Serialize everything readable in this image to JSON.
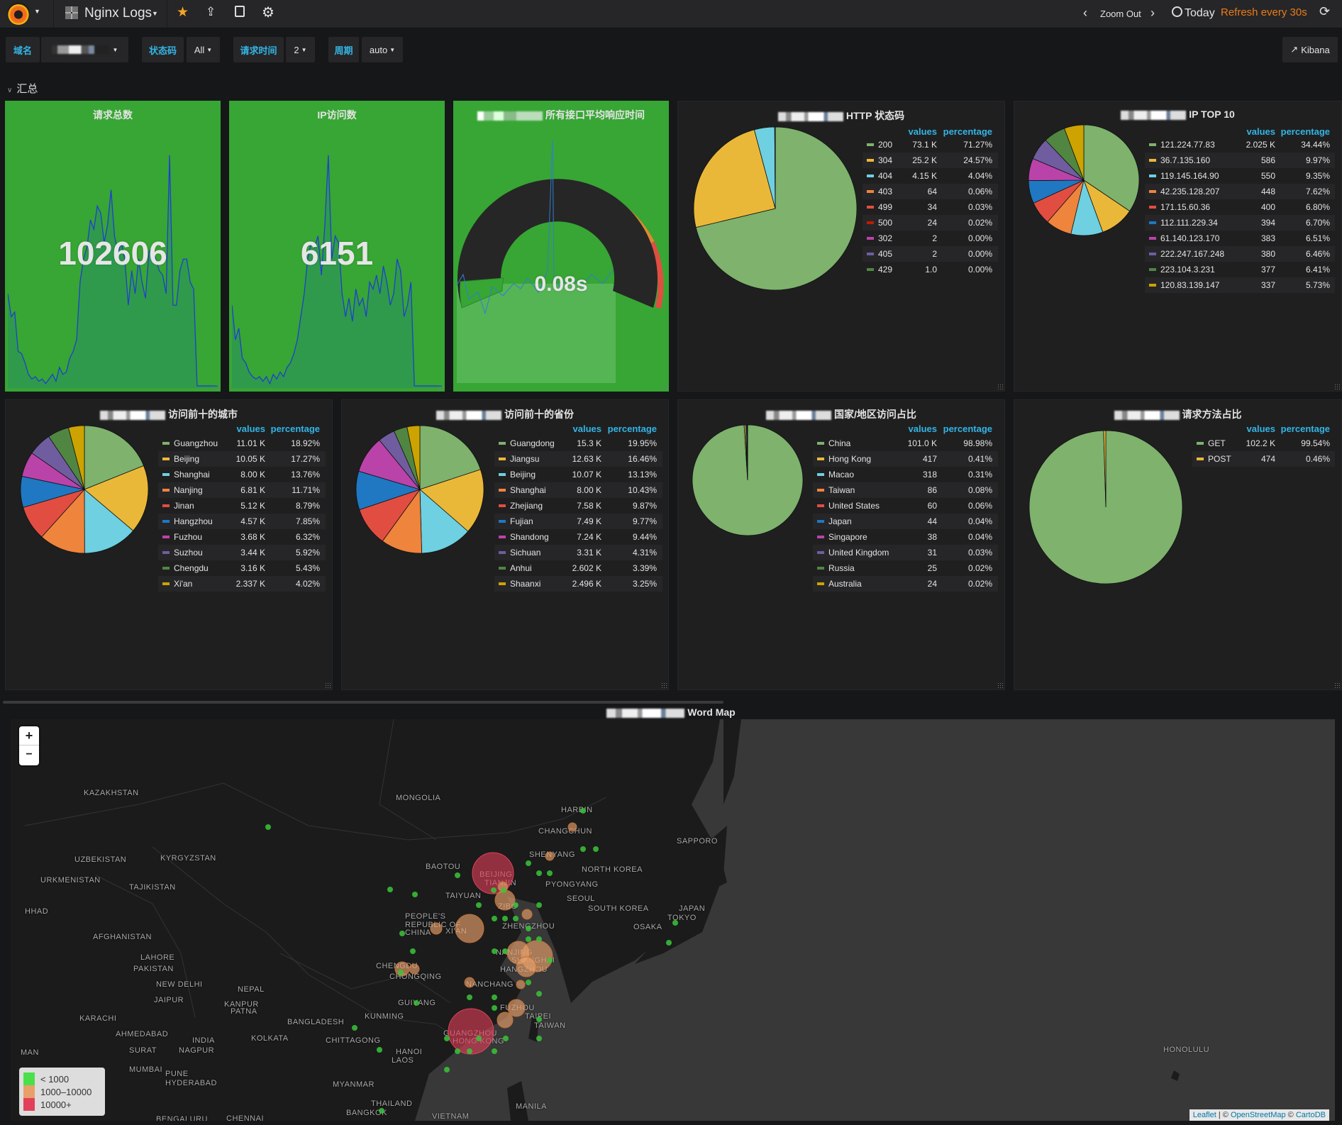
{
  "nav": {
    "dashboard_title": "Nginx Logs",
    "zoom_out": "Zoom Out",
    "time_range": "Today",
    "refresh": "Refresh every 30s"
  },
  "vars": [
    {
      "label": "域名",
      "value": ""
    },
    {
      "label": "状态码",
      "value": "All"
    },
    {
      "label": "请求时间",
      "value": "2"
    },
    {
      "label": "周期",
      "value": "auto"
    }
  ],
  "kibana_link": "Kibana",
  "row_title": "汇总",
  "colors": {
    "panel_green": "#37a634",
    "accent": "#33b5e5",
    "refresh": "#eb7b18",
    "sparkline": "#1f3fcf"
  },
  "stats": [
    {
      "title": "请求总数",
      "value": "102606",
      "sparkline": [
        40,
        30,
        32,
        15,
        14,
        10,
        5,
        3,
        4,
        2,
        3,
        1,
        3,
        5,
        2,
        8,
        5,
        6,
        12,
        15,
        20,
        45,
        55,
        60,
        72,
        68,
        78,
        75,
        62,
        70,
        85,
        65,
        58,
        62,
        55,
        35,
        50,
        40,
        55,
        45,
        38,
        58,
        60,
        55,
        50,
        48,
        40,
        100,
        35,
        35,
        50,
        55,
        55,
        45,
        42,
        0,
        0,
        0,
        0,
        0,
        0,
        0
      ]
    },
    {
      "title": "IP访问数",
      "value": "6151",
      "sparkline": [
        35,
        20,
        25,
        12,
        10,
        6,
        4,
        3,
        4,
        2,
        4,
        1,
        5,
        3,
        6,
        4,
        8,
        10,
        14,
        20,
        30,
        40,
        55,
        62,
        60,
        65,
        48,
        70,
        100,
        55,
        65,
        62,
        40,
        30,
        38,
        28,
        42,
        35,
        38,
        30,
        45,
        42,
        48,
        40,
        52,
        45,
        35,
        40,
        55,
        50,
        30,
        35,
        45,
        0,
        0,
        0,
        0,
        0,
        0,
        0,
        0,
        0
      ]
    },
    {
      "title": "所有接口平均响应时间",
      "value": "0.08s",
      "gauge_fraction": 0.03
    }
  ],
  "pies": [
    {
      "title": "HTTP 状态码",
      "headers": [
        "values",
        "percentage"
      ],
      "colors": [
        "#7eb26d",
        "#eab839",
        "#6ed0e0",
        "#ef843c",
        "#e24d42",
        "#bf1b00",
        "#ba43a9",
        "#705da0",
        "#508642"
      ],
      "items": [
        [
          "200",
          "73.1 K",
          71.27
        ],
        [
          "304",
          "25.2 K",
          24.57
        ],
        [
          "404",
          "4.15 K",
          4.04
        ],
        [
          "403",
          "64",
          0.06
        ],
        [
          "499",
          "34",
          0.03
        ],
        [
          "500",
          "24",
          0.02
        ],
        [
          "302",
          "2",
          0.0
        ],
        [
          "405",
          "2",
          0.0
        ],
        [
          "429",
          "1.0",
          0.0
        ]
      ]
    },
    {
      "title": "IP TOP 10",
      "headers": [
        "values",
        "percentage"
      ],
      "colors": [
        "#7eb26d",
        "#eab839",
        "#6ed0e0",
        "#ef843c",
        "#e24d42",
        "#1f78c1",
        "#ba43a9",
        "#705da0",
        "#508642",
        "#cca300"
      ],
      "items": [
        [
          "121.224.77.83",
          "2.025 K",
          34.44
        ],
        [
          "36.7.135.160",
          "586",
          9.97
        ],
        [
          "119.145.164.90",
          "550",
          9.35
        ],
        [
          "42.235.128.207",
          "448",
          7.62
        ],
        [
          "171.15.60.36",
          "400",
          6.8
        ],
        [
          "112.111.229.34",
          "394",
          6.7
        ],
        [
          "61.140.123.170",
          "383",
          6.51
        ],
        [
          "222.247.167.248",
          "380",
          6.46
        ],
        [
          "223.104.3.231",
          "377",
          6.41
        ],
        [
          "120.83.139.147",
          "337",
          5.73
        ]
      ]
    },
    {
      "title": "访问前十的城市",
      "headers": [
        "values",
        "percentage"
      ],
      "colors": [
        "#7eb26d",
        "#eab839",
        "#6ed0e0",
        "#ef843c",
        "#e24d42",
        "#1f78c1",
        "#ba43a9",
        "#705da0",
        "#508642",
        "#cca300"
      ],
      "items": [
        [
          "Guangzhou",
          "11.01 K",
          18.92
        ],
        [
          "Beijing",
          "10.05 K",
          17.27
        ],
        [
          "Shanghai",
          "8.00 K",
          13.76
        ],
        [
          "Nanjing",
          "6.81 K",
          11.71
        ],
        [
          "Jinan",
          "5.12 K",
          8.79
        ],
        [
          "Hangzhou",
          "4.57 K",
          7.85
        ],
        [
          "Fuzhou",
          "3.68 K",
          6.32
        ],
        [
          "Suzhou",
          "3.44 K",
          5.92
        ],
        [
          "Chengdu",
          "3.16 K",
          5.43
        ],
        [
          "Xi'an",
          "2.337 K",
          4.02
        ]
      ]
    },
    {
      "title": "访问前十的省份",
      "headers": [
        "values",
        "percentage"
      ],
      "colors": [
        "#7eb26d",
        "#eab839",
        "#6ed0e0",
        "#ef843c",
        "#e24d42",
        "#1f78c1",
        "#ba43a9",
        "#705da0",
        "#508642",
        "#cca300"
      ],
      "items": [
        [
          "Guangdong",
          "15.3 K",
          19.95
        ],
        [
          "Jiangsu",
          "12.63 K",
          16.46
        ],
        [
          "Beijing",
          "10.07 K",
          13.13
        ],
        [
          "Shanghai",
          "8.00 K",
          10.43
        ],
        [
          "Zhejiang",
          "7.58 K",
          9.87
        ],
        [
          "Fujian",
          "7.49 K",
          9.77
        ],
        [
          "Shandong",
          "7.24 K",
          9.44
        ],
        [
          "Sichuan",
          "3.31 K",
          4.31
        ],
        [
          "Anhui",
          "2.602 K",
          3.39
        ],
        [
          "Shaanxi",
          "2.496 K",
          3.25
        ]
      ]
    },
    {
      "title": "国家/地区访问占比",
      "headers": [
        "values",
        "percentage"
      ],
      "colors": [
        "#7eb26d",
        "#eab839",
        "#6ed0e0",
        "#ef843c",
        "#e24d42",
        "#1f78c1",
        "#ba43a9",
        "#705da0",
        "#508642",
        "#cca300"
      ],
      "items": [
        [
          "China",
          "101.0 K",
          98.98
        ],
        [
          "Hong Kong",
          "417",
          0.41
        ],
        [
          "Macao",
          "318",
          0.31
        ],
        [
          "Taiwan",
          "86",
          0.08
        ],
        [
          "United States",
          "60",
          0.06
        ],
        [
          "Japan",
          "44",
          0.04
        ],
        [
          "Singapore",
          "38",
          0.04
        ],
        [
          "United Kingdom",
          "31",
          0.03
        ],
        [
          "Russia",
          "25",
          0.02
        ],
        [
          "Australia",
          "24",
          0.02
        ]
      ]
    },
    {
      "title": "请求方法占比",
      "headers": [
        "values",
        "percentage"
      ],
      "colors": [
        "#7eb26d",
        "#eab839"
      ],
      "items": [
        [
          "GET",
          "102.2 K",
          99.54
        ],
        [
          "POST",
          "474",
          0.46
        ]
      ]
    }
  ],
  "map": {
    "title": "Word Map",
    "zoom_in": "+",
    "zoom_out": "−",
    "legend": [
      {
        "label": "< 1000",
        "color": "#4ae04a"
      },
      {
        "label": "1000–10000",
        "color": "#e8a06a"
      },
      {
        "label": "10000+",
        "color": "#e2405a"
      }
    ],
    "attribution": {
      "leaflet": "Leaflet",
      "osm": "OpenStreetMap",
      "carto": "CartoDB"
    },
    "labels": [
      "KAZAKHSTAN",
      "MONGOLIA",
      "HARBIN",
      "CHANGCHUN",
      "SAPPORO",
      "UZBEKISTAN",
      "KYRGYZSTAN",
      "SHENYANG",
      "BAOTOU",
      "NORTH KOREA",
      "BEIJING",
      "TIANJIN",
      "PYONGYANG",
      "URKMENISTAN",
      "TAJIKISTAN",
      "TAIYUAN",
      "SEOUL",
      "ZIBO",
      "SOUTH KOREA",
      "JAPAN",
      "HHAD",
      "TOKYO",
      "PEOPLE'S",
      "REPUBLIC OF",
      "CHINA",
      "XI'AN",
      "ZHENGZHOU",
      "OSAKA",
      "AFGHANISTAN",
      "LAHORE",
      "NANJING",
      "SHANGHAI",
      "CHENGDU",
      "HANGZHOU",
      "PAKISTAN",
      "CHONGQING",
      "NEW DELHI",
      "NEPAL",
      "NANCHANG",
      "JAIPUR",
      "KANPUR",
      "GUIYANG",
      "PATNA",
      "FUZHOU",
      "TAIPEI",
      "KARACHI",
      "KUNMING",
      "BANGLADESH",
      "TAIWAN",
      "AHMEDABAD",
      "GUANGZHOU",
      "INDIA",
      "KOLKATA",
      "CHITTAGONG",
      "HONG KONG",
      "SURAT",
      "NAGPUR",
      "HANOI",
      "MAN",
      "LAOS",
      "MUMBAI",
      "PUNE",
      "HYDERABAD",
      "MYANMAR",
      "THAILAND",
      "MANILA",
      "BANGKOK",
      "VIETNAM",
      "BENGALURU",
      "CHENNAI",
      "HONOLULU"
    ]
  }
}
